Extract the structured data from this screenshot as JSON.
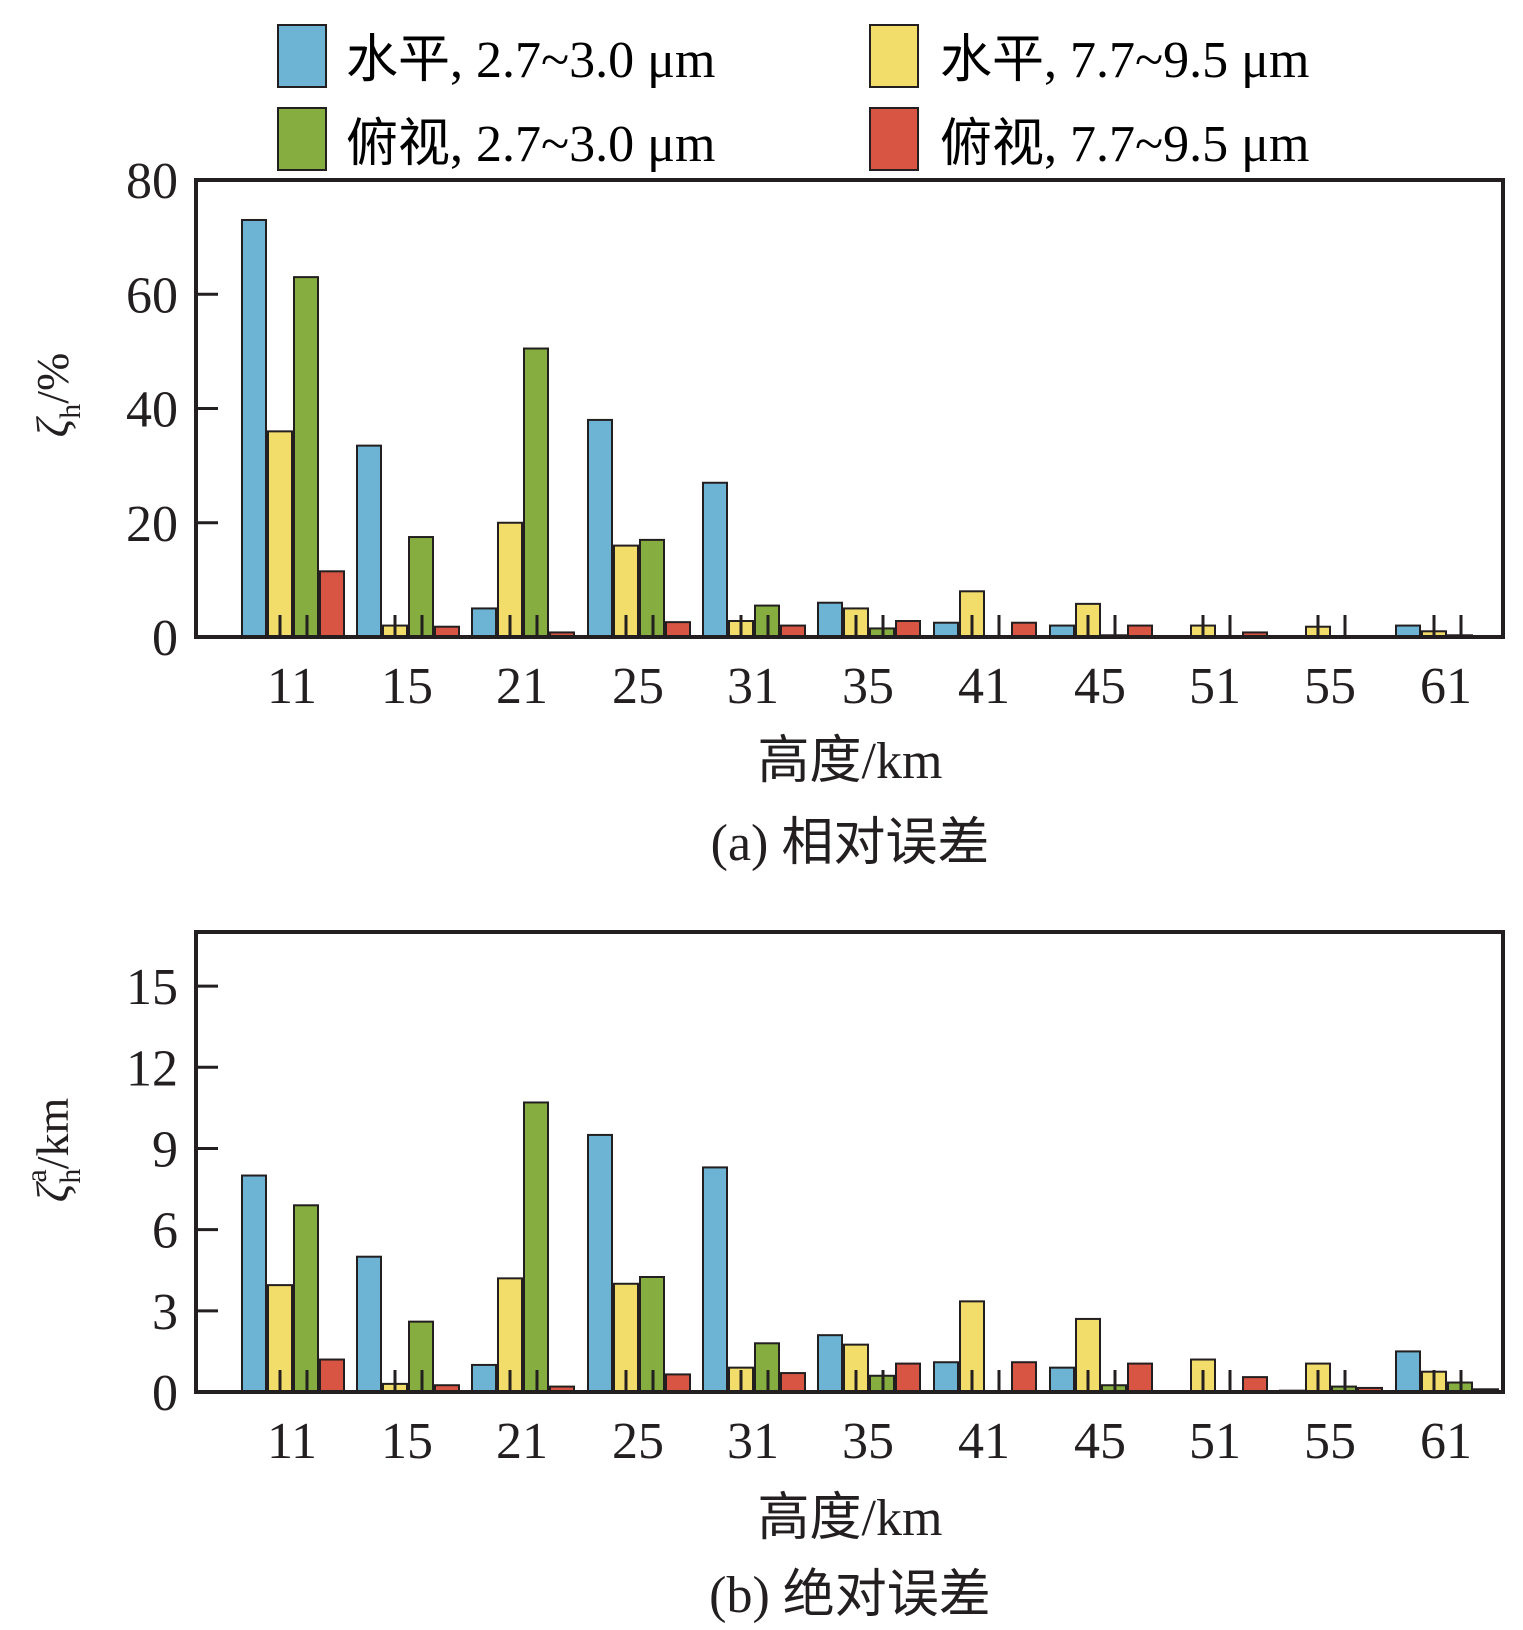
{
  "legend": [
    {
      "label": "水平, 2.7~3.0 μm",
      "color": "#6db3d4"
    },
    {
      "label": "水平, 7.7~9.5 μm",
      "color": "#f3dd6a"
    },
    {
      "label": "俯视, 2.7~3.0 μm",
      "color": "#86ad3f"
    },
    {
      "label": "俯视, 7.7~9.5 μm",
      "color": "#d85543"
    }
  ],
  "chart_data": [
    {
      "type": "bar",
      "caption": "(a) 相对误差",
      "xlabel": "高度/km",
      "ylabel": "ζh/%",
      "ylabel_symbol": "ζ",
      "ylabel_sub": "h",
      "ylabel_sup": "",
      "ylabel_unit": "/%",
      "ylim": [
        0,
        80
      ],
      "yticks": [
        "0",
        "20",
        "40",
        "60",
        "80"
      ],
      "categories": [
        "11",
        "15",
        "21",
        "25",
        "31",
        "35",
        "41",
        "45",
        "51",
        "55",
        "61"
      ],
      "series": [
        {
          "name": "水平, 2.7~3.0 μm",
          "values": [
            73,
            33.5,
            5,
            38,
            27,
            6,
            2.5,
            2,
            0,
            0,
            2
          ]
        },
        {
          "name": "水平, 7.7~9.5 μm",
          "values": [
            36,
            2,
            20,
            16,
            2.8,
            5,
            8,
            5.8,
            2,
            1.8,
            1
          ]
        },
        {
          "name": "俯视, 2.7~3.0 μm",
          "values": [
            63,
            17.5,
            50.5,
            17,
            5.5,
            1.5,
            0,
            0.3,
            0,
            0,
            0.3
          ]
        },
        {
          "name": "俯视, 7.7~9.5 μm",
          "values": [
            11.5,
            1.8,
            0.8,
            2.6,
            2,
            2.8,
            2.5,
            2,
            0.8,
            0,
            0
          ]
        }
      ]
    },
    {
      "type": "bar",
      "caption": "(b) 绝对误差",
      "xlabel": "高度/km",
      "ylabel": "ζh^a/km",
      "ylabel_symbol": "ζ",
      "ylabel_sub": "h",
      "ylabel_sup": "a",
      "ylabel_unit": "/km",
      "ylim": [
        0,
        17
      ],
      "yticks": [
        "0",
        "3",
        "6",
        "9",
        "12",
        "15"
      ],
      "categories": [
        "11",
        "15",
        "21",
        "25",
        "31",
        "35",
        "41",
        "45",
        "51",
        "55",
        "61"
      ],
      "series": [
        {
          "name": "水平, 2.7~3.0 μm",
          "values": [
            8,
            5,
            1,
            9.5,
            8.3,
            2.1,
            1.1,
            0.9,
            0,
            0.05,
            1.5
          ]
        },
        {
          "name": "水平, 7.7~9.5 μm",
          "values": [
            3.95,
            0.3,
            4.2,
            4,
            0.9,
            1.75,
            3.35,
            2.7,
            1.2,
            1.05,
            0.75
          ]
        },
        {
          "name": "俯视, 2.7~3.0 μm",
          "values": [
            6.9,
            2.6,
            10.7,
            4.25,
            1.8,
            0.6,
            0,
            0.25,
            0,
            0.2,
            0.35
          ]
        },
        {
          "name": "俯视, 7.7~9.5 μm",
          "values": [
            1.2,
            0.25,
            0.2,
            0.65,
            0.7,
            1.05,
            1.1,
            1.05,
            0.55,
            0.15,
            0.1
          ]
        }
      ]
    }
  ]
}
